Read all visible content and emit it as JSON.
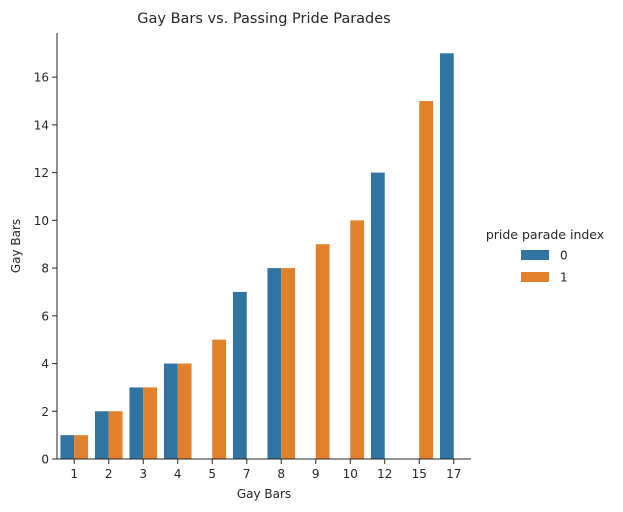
{
  "chart_data": {
    "type": "bar",
    "title": "Gay Bars vs. Passing Pride Parades",
    "xlabel": "Gay Bars",
    "ylabel": "Gay Bars",
    "categories": [
      "1",
      "2",
      "3",
      "4",
      "5",
      "7",
      "8",
      "9",
      "10",
      "12",
      "15",
      "17"
    ],
    "series": [
      {
        "name": "0",
        "color": "#3274a1",
        "values": [
          1,
          2,
          3,
          4,
          null,
          7,
          8,
          null,
          null,
          12,
          null,
          17
        ]
      },
      {
        "name": "1",
        "color": "#e1812c",
        "values": [
          1,
          2,
          3,
          4,
          5,
          null,
          8,
          9,
          10,
          null,
          15,
          null
        ]
      }
    ],
    "ylim": [
      0,
      17.85
    ],
    "yticks": [
      0,
      2,
      4,
      6,
      8,
      10,
      12,
      14,
      16
    ],
    "ytick_labels": [
      "0",
      "2",
      "4",
      "6",
      "8",
      "10",
      "12",
      "14",
      "16"
    ],
    "legend": {
      "title": "pride parade index",
      "placement": "right"
    },
    "grid": false
  }
}
